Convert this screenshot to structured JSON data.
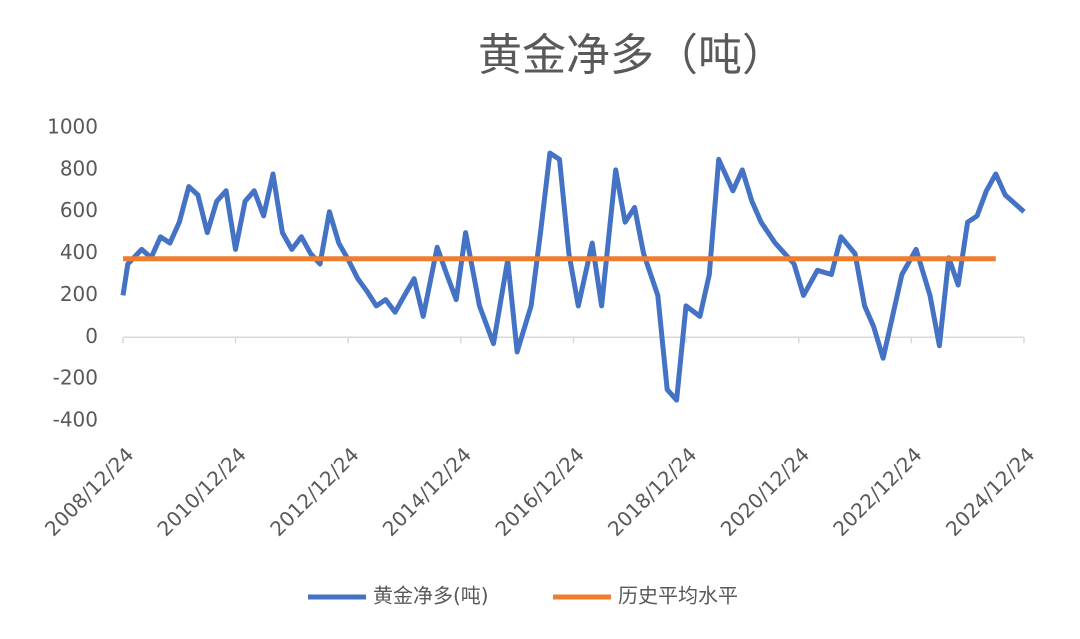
{
  "chart_data": {
    "type": "line",
    "title": "黄金净多（吨）",
    "xlim": [
      "2008/12/24",
      "2024/12/24"
    ],
    "xticks": [
      "2008/12/24",
      "2010/12/24",
      "2012/12/24",
      "2014/12/24",
      "2016/12/24",
      "2018/12/24",
      "2020/12/24",
      "2022/12/24",
      "2024/12/24"
    ],
    "ylim": [
      -400,
      1000
    ],
    "yticks": [
      -400,
      -200,
      0,
      200,
      400,
      600,
      800,
      1000
    ],
    "grid": false,
    "legend": "bottom",
    "series": [
      {
        "name": "黄金净多(吨)",
        "color": "#4472c4",
        "x": [
          "2008/12/24",
          "2009/01/24",
          "2009/04/24",
          "2009/06/24",
          "2009/08/24",
          "2009/10/24",
          "2009/12/24",
          "2010/02/24",
          "2010/04/24",
          "2010/06/24",
          "2010/08/24",
          "2010/10/24",
          "2010/12/24",
          "2011/02/24",
          "2011/04/24",
          "2011/06/24",
          "2011/08/24",
          "2011/10/24",
          "2011/12/24",
          "2012/02/24",
          "2012/04/24",
          "2012/06/24",
          "2012/08/24",
          "2012/10/24",
          "2012/12/24",
          "2013/02/24",
          "2013/04/24",
          "2013/06/24",
          "2013/08/24",
          "2013/10/24",
          "2013/12/24",
          "2014/02/24",
          "2014/04/24",
          "2014/07/24",
          "2014/09/24",
          "2014/11/24",
          "2015/01/24",
          "2015/04/24",
          "2015/07/24",
          "2015/10/24",
          "2015/12/24",
          "2016/03/24",
          "2016/05/24",
          "2016/07/24",
          "2016/09/24",
          "2016/11/24",
          "2017/01/24",
          "2017/04/24",
          "2017/06/24",
          "2017/09/24",
          "2017/11/24",
          "2018/01/24",
          "2018/03/24",
          "2018/06/24",
          "2018/08/24",
          "2018/10/24",
          "2018/12/24",
          "2019/03/24",
          "2019/05/24",
          "2019/07/24",
          "2019/10/24",
          "2019/12/24",
          "2020/02/24",
          "2020/04/24",
          "2020/07/24",
          "2020/09/24",
          "2020/11/24",
          "2021/01/24",
          "2021/04/24",
          "2021/07/24",
          "2021/09/24",
          "2021/12/24",
          "2022/02/24",
          "2022/04/24",
          "2022/06/24",
          "2022/08/24",
          "2022/10/24",
          "2023/01/24",
          "2023/04/24",
          "2023/06/24",
          "2023/08/24",
          "2023/10/24",
          "2023/12/24",
          "2024/02/24",
          "2024/04/24",
          "2024/06/24",
          "2024/08/24",
          "2024/12/24"
        ],
        "values": [
          200,
          350,
          420,
          380,
          480,
          450,
          550,
          720,
          680,
          500,
          650,
          700,
          420,
          650,
          700,
          580,
          780,
          500,
          420,
          480,
          400,
          350,
          600,
          450,
          370,
          280,
          220,
          150,
          180,
          120,
          200,
          280,
          100,
          430,
          300,
          180,
          500,
          150,
          -30,
          370,
          -70,
          150,
          500,
          880,
          850,
          400,
          150,
          450,
          150,
          800,
          550,
          620,
          400,
          200,
          -250,
          -300,
          150,
          100,
          300,
          850,
          700,
          800,
          650,
          550,
          450,
          400,
          350,
          200,
          320,
          300,
          480,
          400,
          150,
          50,
          -100,
          100,
          300,
          420,
          200,
          -40,
          380,
          250,
          550,
          580,
          700,
          780,
          680,
          600
        ]
      },
      {
        "name": "历史平均水平",
        "color": "#ed7d31",
        "x": [
          "2008/12/24",
          "2024/06/24"
        ],
        "values": [
          375,
          375
        ]
      }
    ]
  }
}
